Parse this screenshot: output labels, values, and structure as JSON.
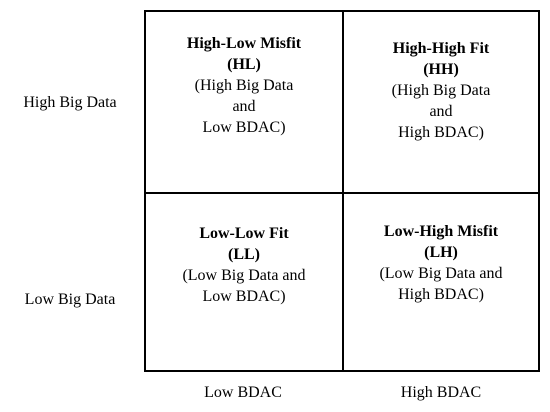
{
  "rows": {
    "high_label": "High Big Data",
    "low_label": "Low Big Data"
  },
  "columns": {
    "low_label": "Low BDAC",
    "high_label": "High BDAC"
  },
  "quadrants": {
    "top_left": {
      "title": "High-Low Misfit",
      "abbr": "(HL)",
      "desc_lines": [
        "(High Big Data",
        "and",
        "Low BDAC)"
      ]
    },
    "top_right": {
      "title": "High-High Fit",
      "abbr": "(HH)",
      "desc_lines": [
        "(High Big Data",
        "and",
        "High BDAC)"
      ]
    },
    "bottom_left": {
      "title": "Low-Low Fit",
      "abbr": "(LL)",
      "desc_lines": [
        "(Low Big Data and",
        "Low BDAC)"
      ]
    },
    "bottom_right": {
      "title": "Low-High Misfit",
      "abbr": "(LH)",
      "desc_lines": [
        "(Low Big Data and",
        "High BDAC)"
      ]
    }
  }
}
